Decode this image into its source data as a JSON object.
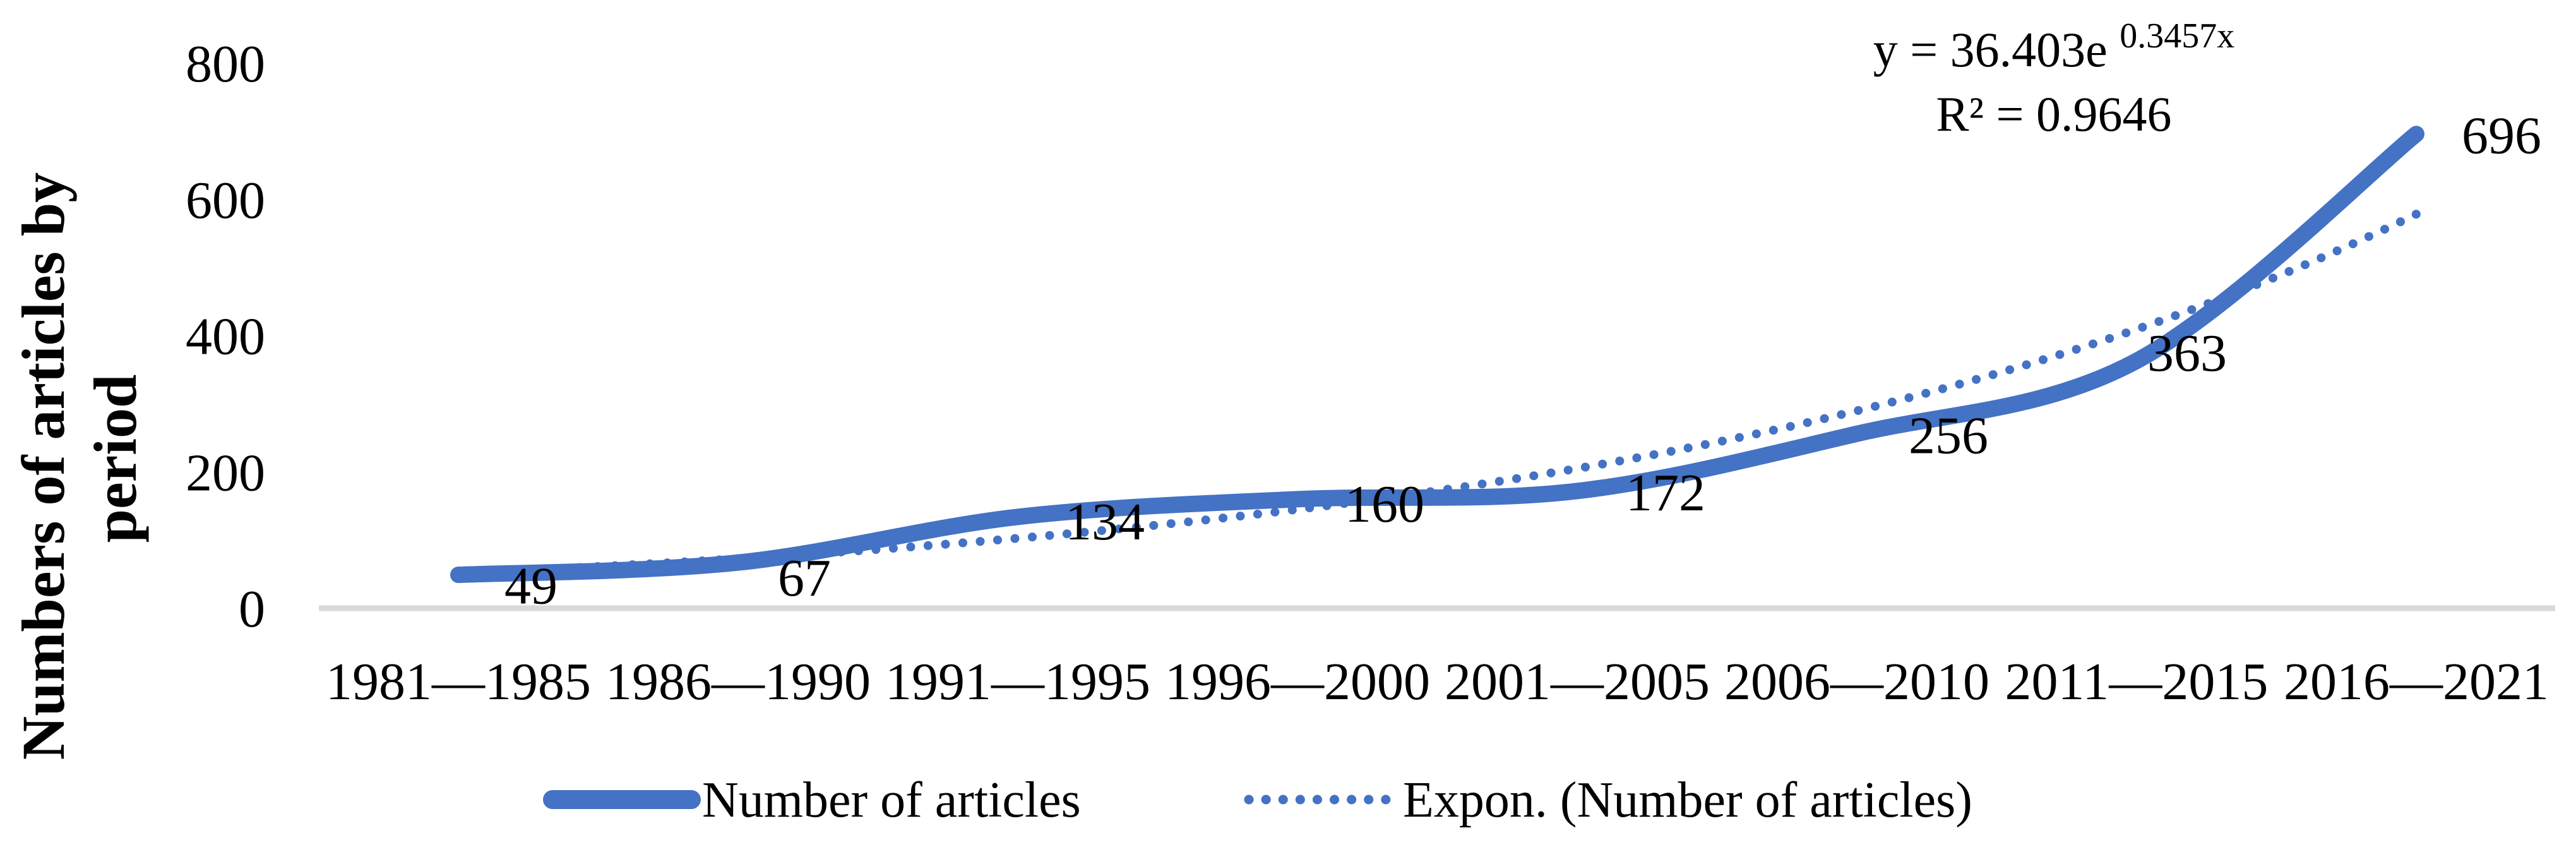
{
  "figure": {
    "background": "#FFFFFF",
    "accent_color": "#4472C4",
    "axis_line_color": "#D9D9D9",
    "text_color": "#000000"
  },
  "y_axis": {
    "title_lines": [
      "Numbers of articles by",
      "period"
    ],
    "ticks": [
      0,
      200,
      400,
      600,
      800
    ],
    "min": 0,
    "max": 800
  },
  "annotation": {
    "equation_prefix": "y = 36.403e",
    "equation_exponent": "0.3457x",
    "r_squared": "R² = 0.9646"
  },
  "legend": {
    "items": [
      {
        "label": "Number of articles",
        "style": "solid"
      },
      {
        "label": "Expon. (Number of articles)",
        "style": "dotted"
      }
    ]
  },
  "chart_data": {
    "type": "line",
    "title": "",
    "xlabel": "",
    "ylabel": "Numbers of articles by period",
    "ylim": [
      0,
      800
    ],
    "grid": false,
    "legend_position": "bottom",
    "categories": [
      "1981—1985",
      "1986—1990",
      "1991—1995",
      "1996—2000",
      "2001—2005",
      "2006—2010",
      "2011—2015",
      "2016—2021"
    ],
    "series": [
      {
        "name": "Number of articles",
        "type": "smooth-line",
        "style": "solid",
        "values": [
          49,
          67,
          134,
          160,
          172,
          256,
          363,
          696
        ]
      },
      {
        "name": "Expon. (Number of articles)",
        "type": "exponential-trendline",
        "style": "dotted",
        "equation": "y = 36.403e^(0.3457x)",
        "r2": 0.9646,
        "params": {
          "a": 36.403,
          "b": 0.3457
        }
      }
    ],
    "data_labels": [
      "49",
      "67",
      "134",
      "160",
      "172",
      "256",
      "363",
      "696"
    ]
  }
}
